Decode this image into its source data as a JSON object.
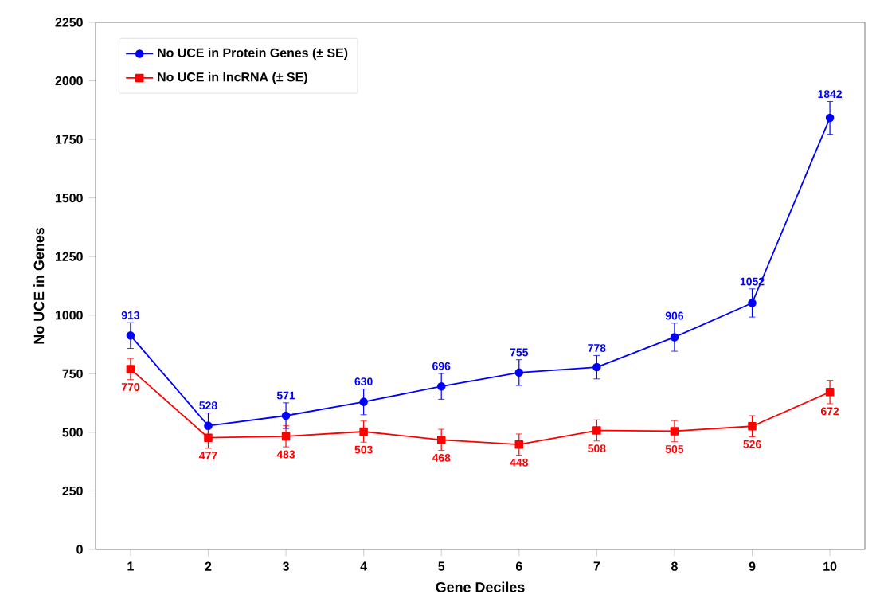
{
  "chart_data": {
    "type": "line",
    "xlabel": "Gene Deciles",
    "ylabel": "No UCE in Genes",
    "categories": [
      "1",
      "2",
      "3",
      "4",
      "5",
      "6",
      "7",
      "8",
      "9",
      "10"
    ],
    "series": [
      {
        "name": "No UCE in Protein Genes (± SE)",
        "color": "#0000ff",
        "marker": "circle",
        "values": [
          913,
          528,
          571,
          630,
          696,
          755,
          778,
          906,
          1052,
          1842
        ],
        "errors": [
          55,
          55,
          55,
          55,
          55,
          55,
          50,
          60,
          60,
          70
        ]
      },
      {
        "name": "No UCE in lncRNA (± SE)",
        "color": "#ff0000",
        "marker": "square",
        "values": [
          770,
          477,
          483,
          503,
          468,
          448,
          508,
          505,
          526,
          672
        ],
        "errors": [
          45,
          45,
          45,
          45,
          45,
          45,
          45,
          45,
          45,
          50
        ]
      }
    ],
    "ylim": [
      0,
      2250
    ],
    "yticks": [
      0,
      250,
      500,
      750,
      1000,
      1250,
      1500,
      1750,
      2000,
      2250
    ],
    "data_labels": true,
    "legend": "top left",
    "grid": false,
    "line_style": "solid"
  }
}
